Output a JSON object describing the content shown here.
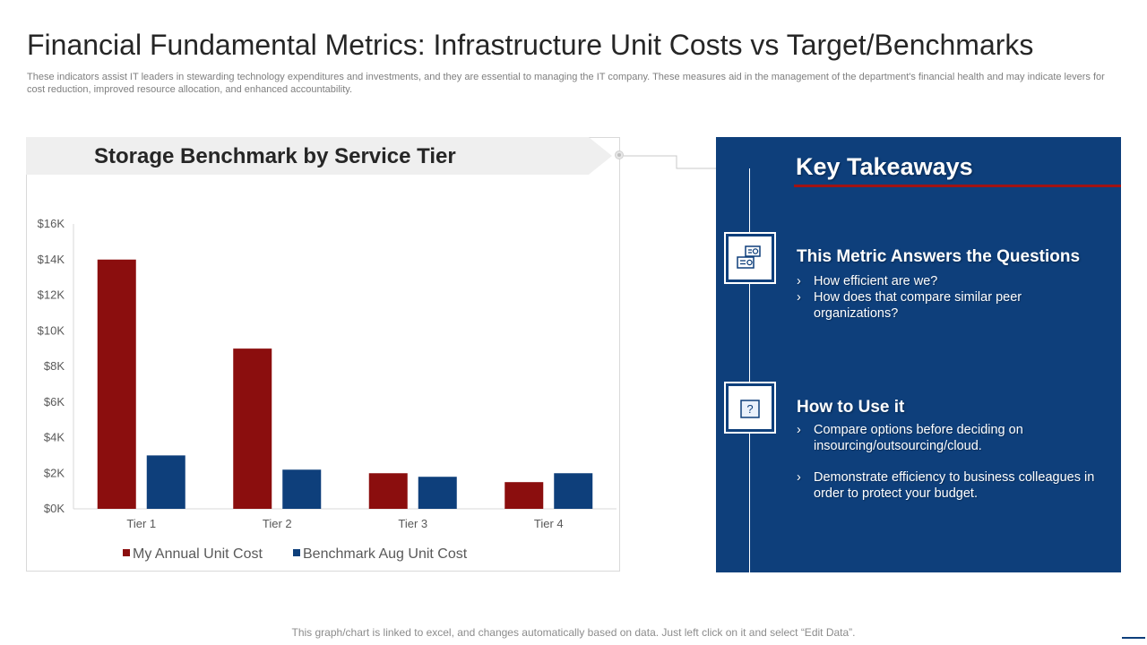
{
  "slide": {
    "title": "Financial Fundamental Metrics: Infrastructure Unit Costs vs Target/Benchmarks",
    "subtitle": "These indicators assist IT leaders in stewarding technology expenditures and investments, and they are essential to managing the IT company. These measures aid in the management of the department's financial health and may indicate levers for cost reduction, improved resource allocation, and enhanced accountability.",
    "footer": "This graph/chart is linked to excel, and changes automatically based on data. Just left click on it and select “Edit Data”."
  },
  "chart_data": {
    "type": "bar",
    "title": "Storage Benchmark by Service Tier",
    "categories": [
      "Tier 1",
      "Tier 2",
      "Tier 3",
      "Tier 4"
    ],
    "series": [
      {
        "name": "My Annual Unit Cost",
        "values": [
          14000,
          9000,
          2000,
          1500
        ],
        "color": "#8b0e0e"
      },
      {
        "name": "Benchmark Aug Unit Cost",
        "values": [
          3000,
          2200,
          1800,
          2000
        ],
        "color": "#0e3f7b"
      }
    ],
    "ylim": [
      0,
      16000
    ],
    "yticks": [
      0,
      2000,
      4000,
      6000,
      8000,
      10000,
      12000,
      14000,
      16000
    ],
    "ytick_labels": [
      "$0K",
      "$2K",
      "$4K",
      "$6K",
      "$8K",
      "$10K",
      "$12K",
      "$14K",
      "$16K"
    ],
    "grid": false,
    "legend_position": "bottom"
  },
  "takeaways": {
    "title": "Key Takeaways",
    "colors": {
      "panel": "#0e3f7b",
      "accent": "#a11313"
    },
    "sections": [
      {
        "icon": "id-card-icon",
        "title": "This Metric Answers the Questions",
        "bullets": [
          "How efficient are we?",
          "How does that compare similar peer organizations?"
        ]
      },
      {
        "icon": "question-mark-icon",
        "title": "How to Use it",
        "bullets": [
          "Compare options before deciding on insourcing/outsourcing/cloud.",
          "Demonstrate efficiency to business colleagues in order to protect your budget."
        ]
      }
    ],
    "bullet_glyph": "›"
  }
}
